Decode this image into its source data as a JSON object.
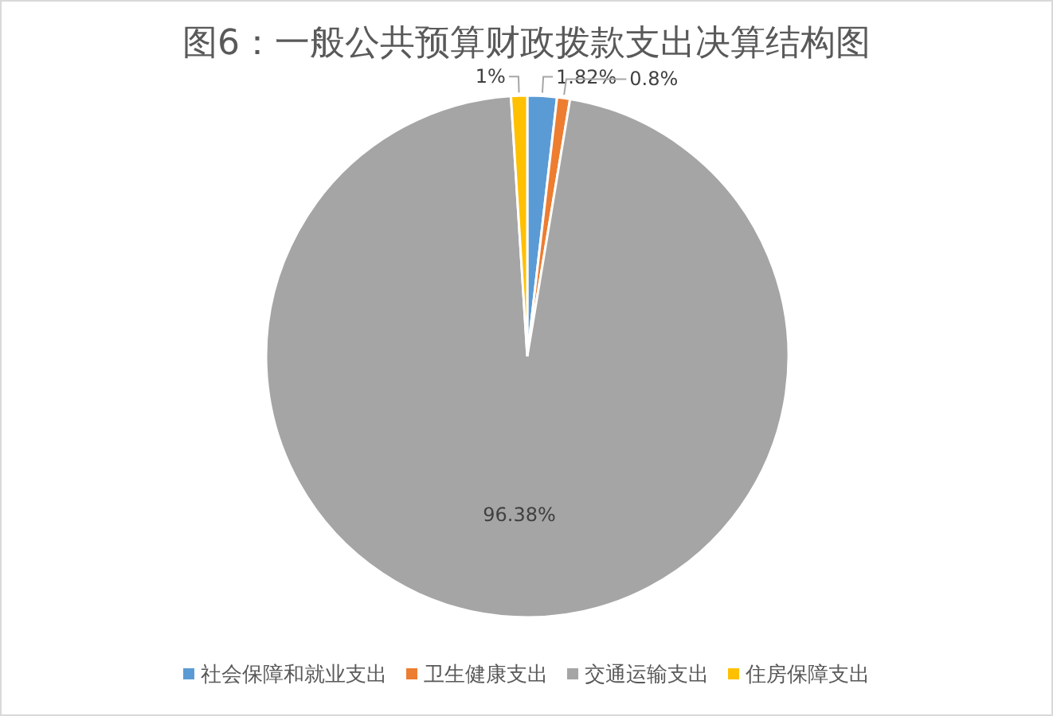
{
  "chart_data": {
    "type": "pie",
    "title": "图6：一般公共预算财政拨款支出决算结构图",
    "categories": [
      "社会保障和就业支出",
      "卫生健康支出",
      "交通运输支出",
      "住房保障支出"
    ],
    "values": [
      1.82,
      0.8,
      96.38,
      1
    ],
    "value_labels": [
      "1.82%",
      "0.8%",
      "96.38%",
      "1%"
    ],
    "colors": [
      "#5b9bd5",
      "#ed7d31",
      "#a5a5a5",
      "#ffc000"
    ],
    "legend": "bottom"
  }
}
